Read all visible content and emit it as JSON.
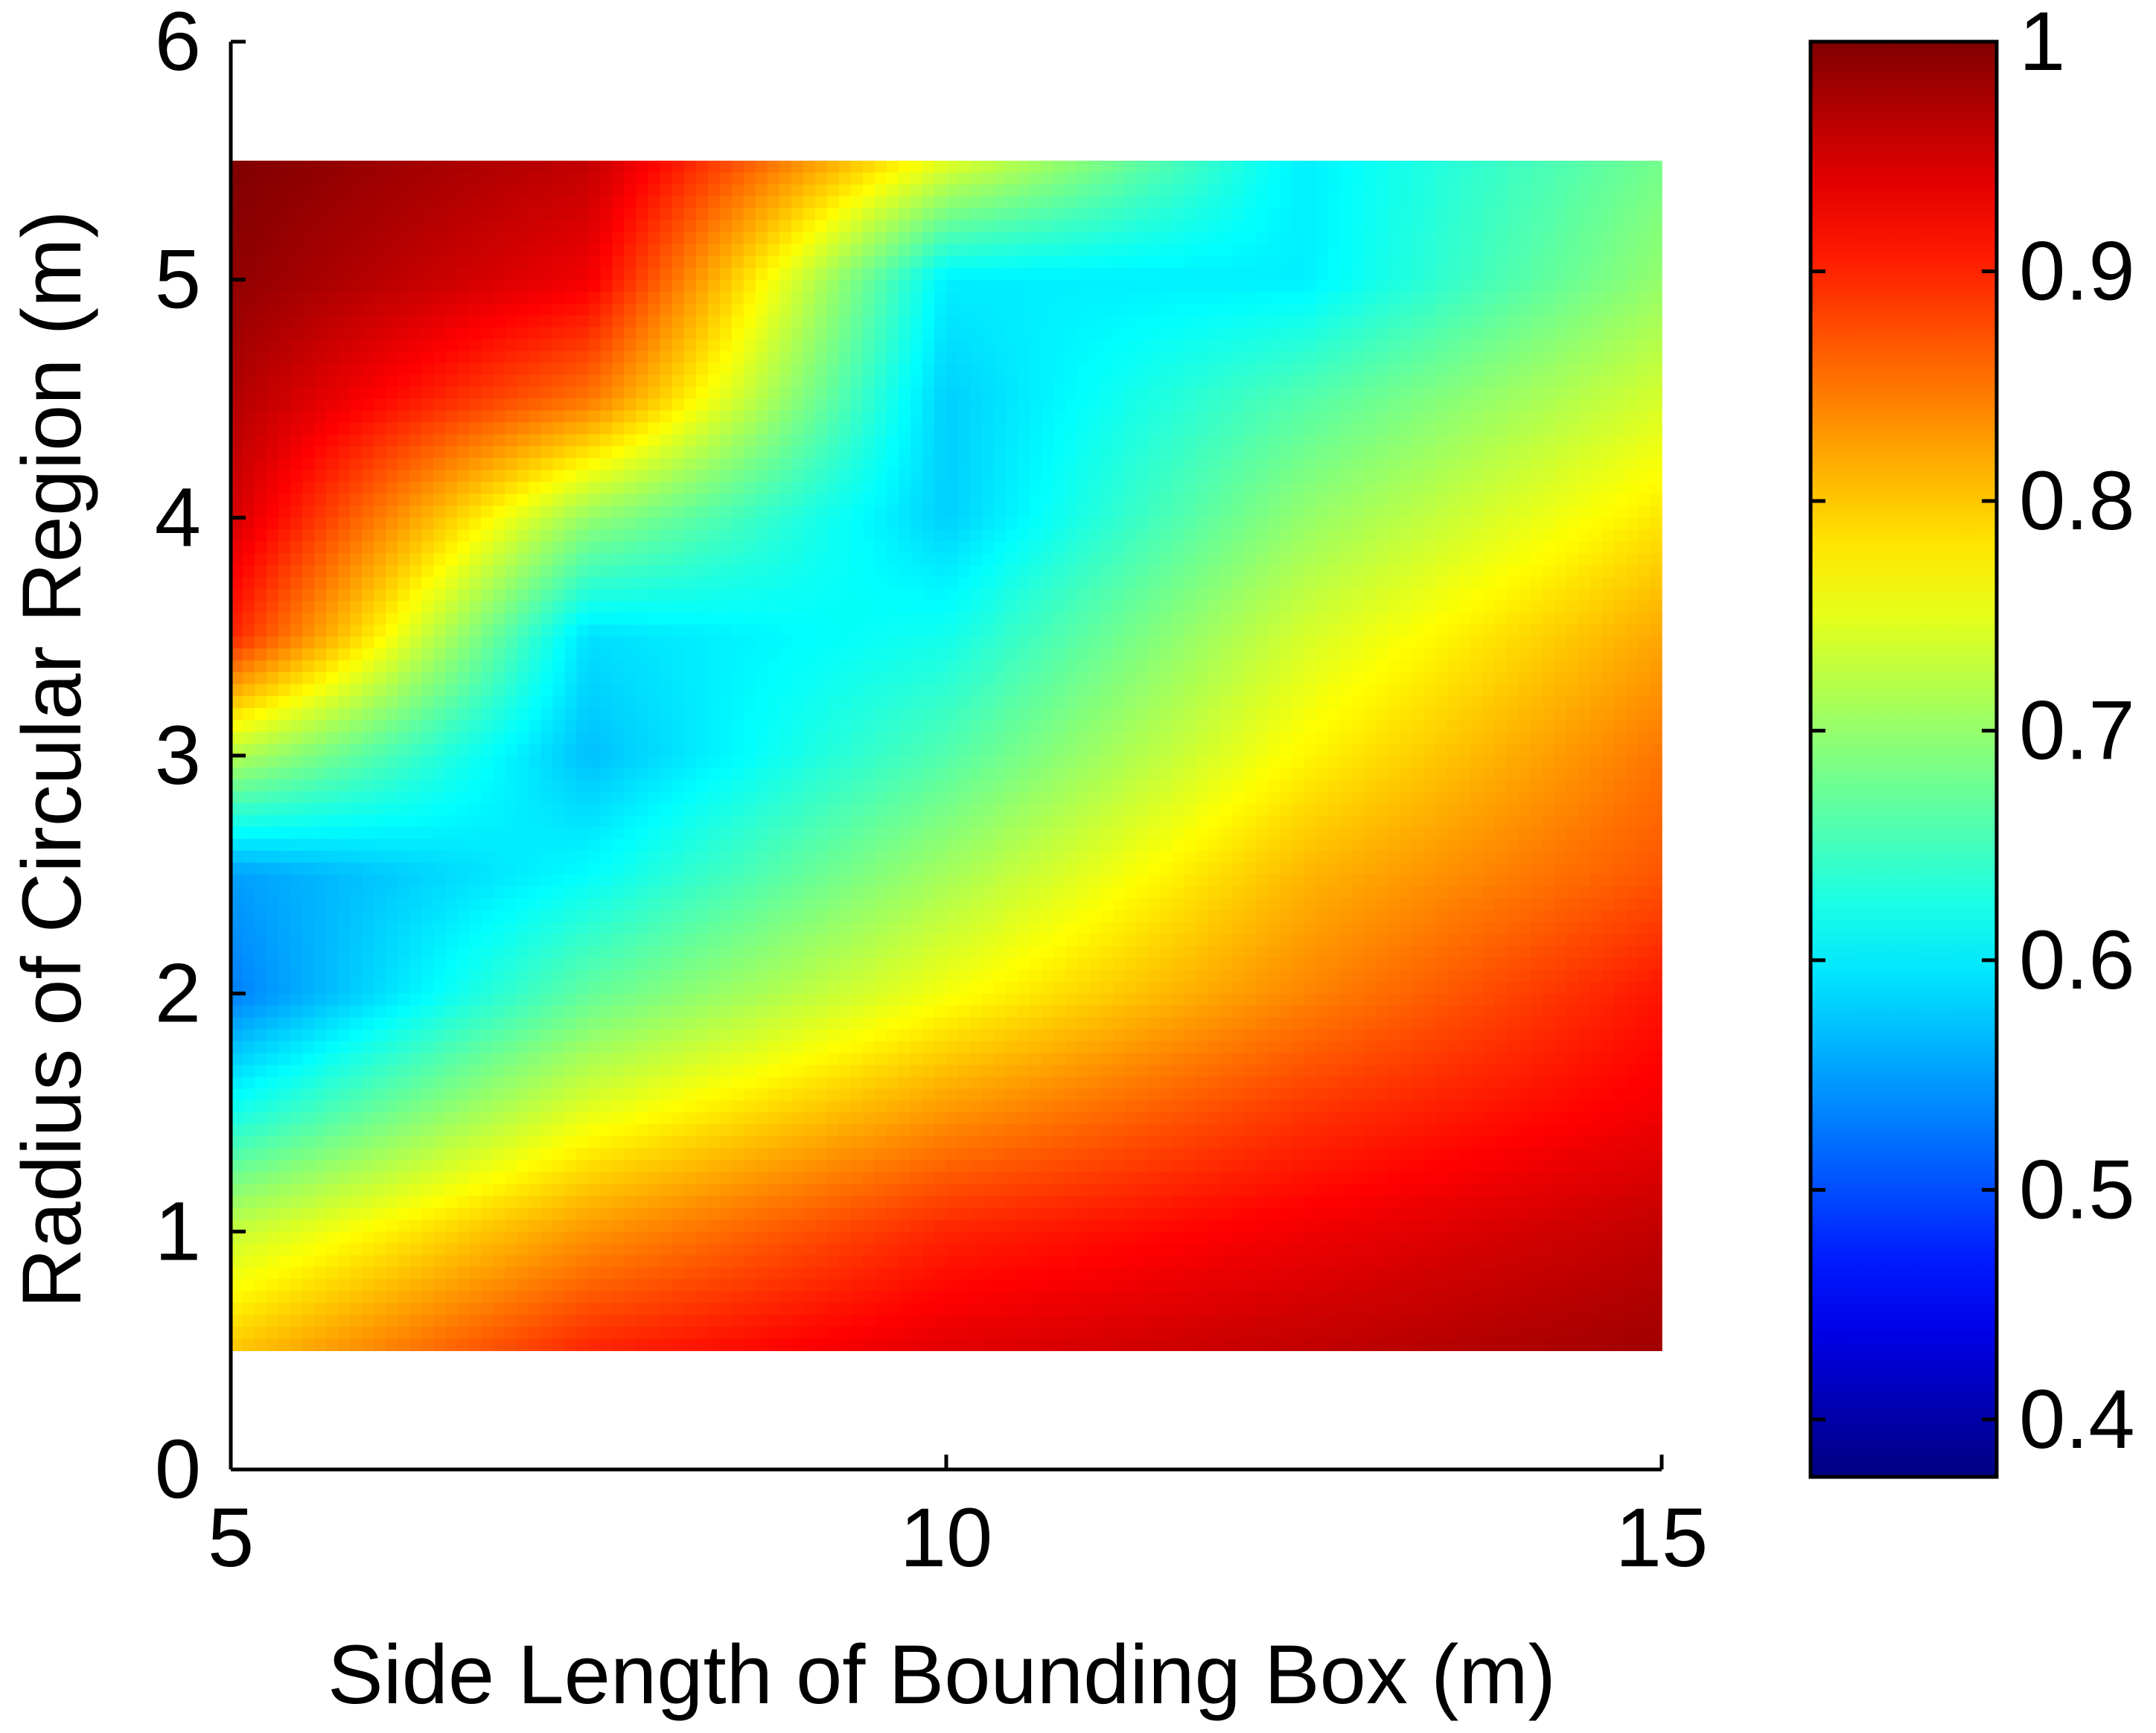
{
  "chart_data": {
    "type": "heatmap",
    "title": "",
    "xlabel": "Side Length of Bounding Box (m)",
    "ylabel": "Radius of Circular Region (m)",
    "xlim": [
      5,
      15
    ],
    "ylim": [
      0,
      6
    ],
    "x_ticks": [
      "5",
      "10",
      "15"
    ],
    "y_ticks": [
      "0",
      "1",
      "2",
      "3",
      "4",
      "5",
      "6"
    ],
    "colorbar": {
      "range": [
        0.375,
        1.0
      ],
      "ticks": [
        "0.4",
        "0.5",
        "0.6",
        "0.7",
        "0.8",
        "0.9",
        "1"
      ],
      "colormap": "jet"
    },
    "grid": false,
    "x": [
      5,
      7.5,
      10,
      12.5,
      15
    ],
    "y": [
      0.5,
      1.0,
      1.5,
      2.0,
      2.5,
      3.0,
      3.5,
      4.0,
      4.5,
      5.0,
      5.5
    ],
    "z": [
      [
        0.8,
        0.9,
        0.94,
        0.96,
        0.98
      ],
      [
        0.73,
        0.83,
        0.9,
        0.93,
        0.96
      ],
      [
        0.62,
        0.75,
        0.83,
        0.89,
        0.93
      ],
      [
        0.53,
        0.67,
        0.76,
        0.84,
        0.91
      ],
      [
        0.55,
        0.61,
        0.71,
        0.81,
        0.87
      ],
      [
        0.72,
        0.57,
        0.66,
        0.77,
        0.85
      ],
      [
        0.9,
        0.59,
        0.62,
        0.74,
        0.82
      ],
      [
        0.95,
        0.7,
        0.58,
        0.7,
        0.78
      ],
      [
        0.97,
        0.85,
        0.58,
        0.66,
        0.74
      ],
      [
        0.99,
        0.93,
        0.6,
        0.6,
        0.7
      ],
      [
        1.0,
        0.96,
        0.75,
        0.6,
        0.68
      ]
    ]
  }
}
